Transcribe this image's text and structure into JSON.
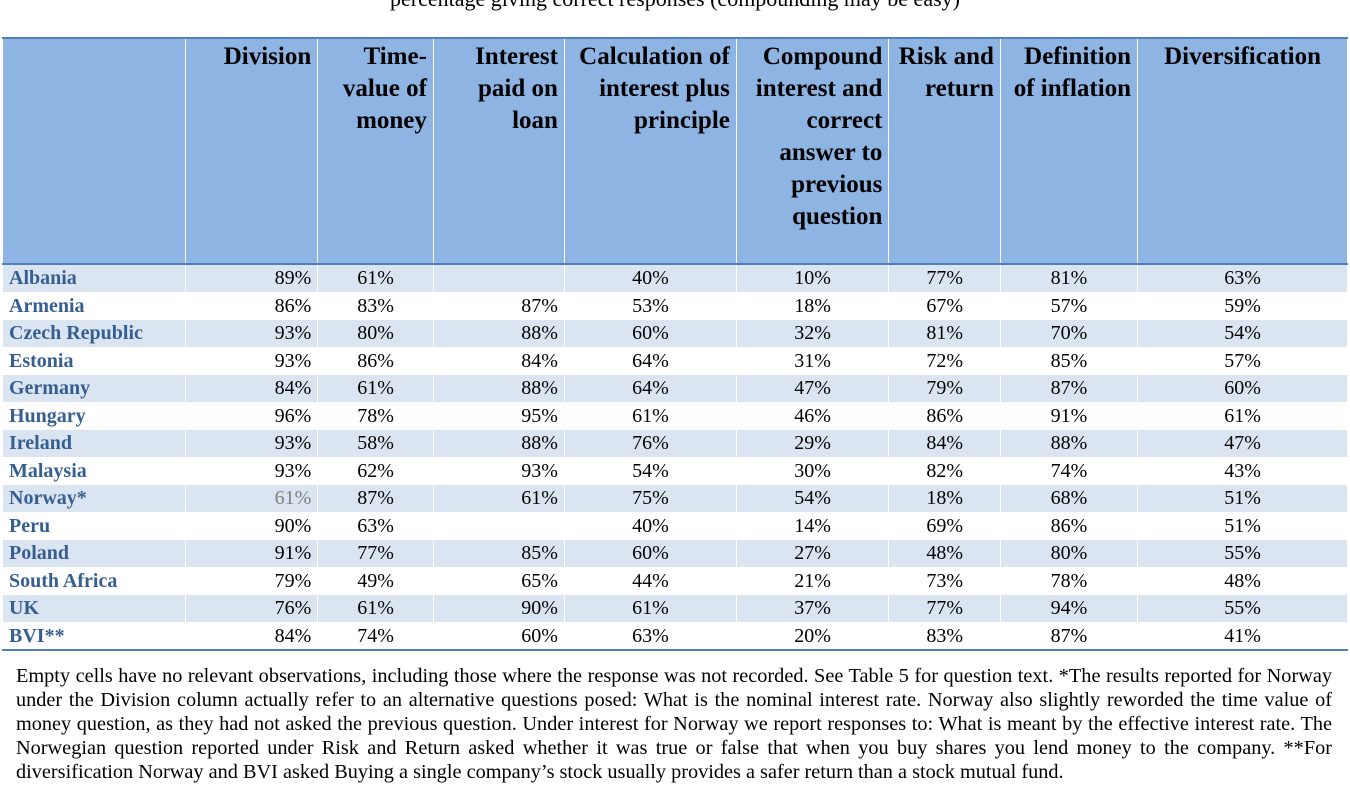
{
  "caption": "percentage giving correct responses (compounding may be easy)",
  "table": {
    "headers": [
      "",
      "Division",
      "Time-value of money",
      "Interest paid on loan",
      "Calculation of interest plus principle",
      "Compound interest and correct answer to previous question",
      "Risk and return",
      "Definition of inflation",
      "Diversification"
    ],
    "rows": [
      {
        "country": "Albania",
        "division": "89%",
        "time_value": "61%",
        "interest_paid": "",
        "calculation": "40%",
        "compound": "10%",
        "risk": "77%",
        "inflation": "81%",
        "diversification": "63%"
      },
      {
        "country": "Armenia",
        "division": "86%",
        "time_value": "83%",
        "interest_paid": "87%",
        "calculation": "53%",
        "compound": "18%",
        "risk": "67%",
        "inflation": "57%",
        "diversification": "59%"
      },
      {
        "country": "Czech Republic",
        "division": "93%",
        "time_value": "80%",
        "interest_paid": "88%",
        "calculation": "60%",
        "compound": "32%",
        "risk": "81%",
        "inflation": "70%",
        "diversification": "54%"
      },
      {
        "country": "Estonia",
        "division": "93%",
        "time_value": "86%",
        "interest_paid": "84%",
        "calculation": "64%",
        "compound": "31%",
        "risk": "72%",
        "inflation": "85%",
        "diversification": "57%"
      },
      {
        "country": "Germany",
        "division": "84%",
        "time_value": "61%",
        "interest_paid": "88%",
        "calculation": "64%",
        "compound": "47%",
        "risk": "79%",
        "inflation": "87%",
        "diversification": "60%"
      },
      {
        "country": "Hungary",
        "division": "96%",
        "time_value": "78%",
        "interest_paid": "95%",
        "calculation": "61%",
        "compound": "46%",
        "risk": "86%",
        "inflation": "91%",
        "diversification": "61%"
      },
      {
        "country": "Ireland",
        "division": "93%",
        "time_value": "58%",
        "interest_paid": "88%",
        "calculation": "76%",
        "compound": "29%",
        "risk": "84%",
        "inflation": "88%",
        "diversification": "47%"
      },
      {
        "country": "Malaysia",
        "division": "93%",
        "time_value": "62%",
        "interest_paid": "93%",
        "calculation": "54%",
        "compound": "30%",
        "risk": "82%",
        "inflation": "74%",
        "diversification": "43%"
      },
      {
        "country": "Norway*",
        "division": "61%",
        "time_value": "87%",
        "interest_paid": "61%",
        "calculation": "75%",
        "compound": "54%",
        "risk": "18%",
        "inflation": "68%",
        "diversification": "51%"
      },
      {
        "country": "Peru",
        "division": "90%",
        "time_value": "63%",
        "interest_paid": "",
        "calculation": "40%",
        "compound": "14%",
        "risk": "69%",
        "inflation": "86%",
        "diversification": "51%"
      },
      {
        "country": "Poland",
        "division": "91%",
        "time_value": "77%",
        "interest_paid": "85%",
        "calculation": "60%",
        "compound": "27%",
        "risk": "48%",
        "inflation": "80%",
        "diversification": "55%"
      },
      {
        "country": "South Africa",
        "division": "79%",
        "time_value": "49%",
        "interest_paid": "65%",
        "calculation": "44%",
        "compound": "21%",
        "risk": "73%",
        "inflation": "78%",
        "diversification": "48%"
      },
      {
        "country": "UK",
        "division": "76%",
        "time_value": "61%",
        "interest_paid": "90%",
        "calculation": "61%",
        "compound": "37%",
        "risk": "77%",
        "inflation": "94%",
        "diversification": "55%"
      },
      {
        "country": "BVI**",
        "division": "84%",
        "time_value": "74%",
        "interest_paid": "60%",
        "calculation": "63%",
        "compound": "20%",
        "risk": "83%",
        "inflation": "87%",
        "diversification": "41%"
      }
    ]
  },
  "notes": "Empty cells have no relevant observations, including those where the response was not recorded. See Table 5 for question text. *The results reported for Norway under the Division column actually refer to an alternative questions posed: What is the nominal interest rate. Norway also slightly reworded the time value of money question, as they had not asked the previous question. Under interest for Norway we report responses to: What is meant by the effective interest rate. The Norwegian question reported under Risk and Return asked whether it was true or false that when you buy shares you lend money to the company. **For diversification Norway and BVI asked Buying a single company’s stock usually provides a safer return than a stock mutual fund.",
  "colors": {
    "header_bg": "#8eb4e3",
    "band_bg": "#dbe5f1",
    "rule": "#4f81bd",
    "country_text": "#365f91",
    "muted_text": "#7f7f7f"
  }
}
